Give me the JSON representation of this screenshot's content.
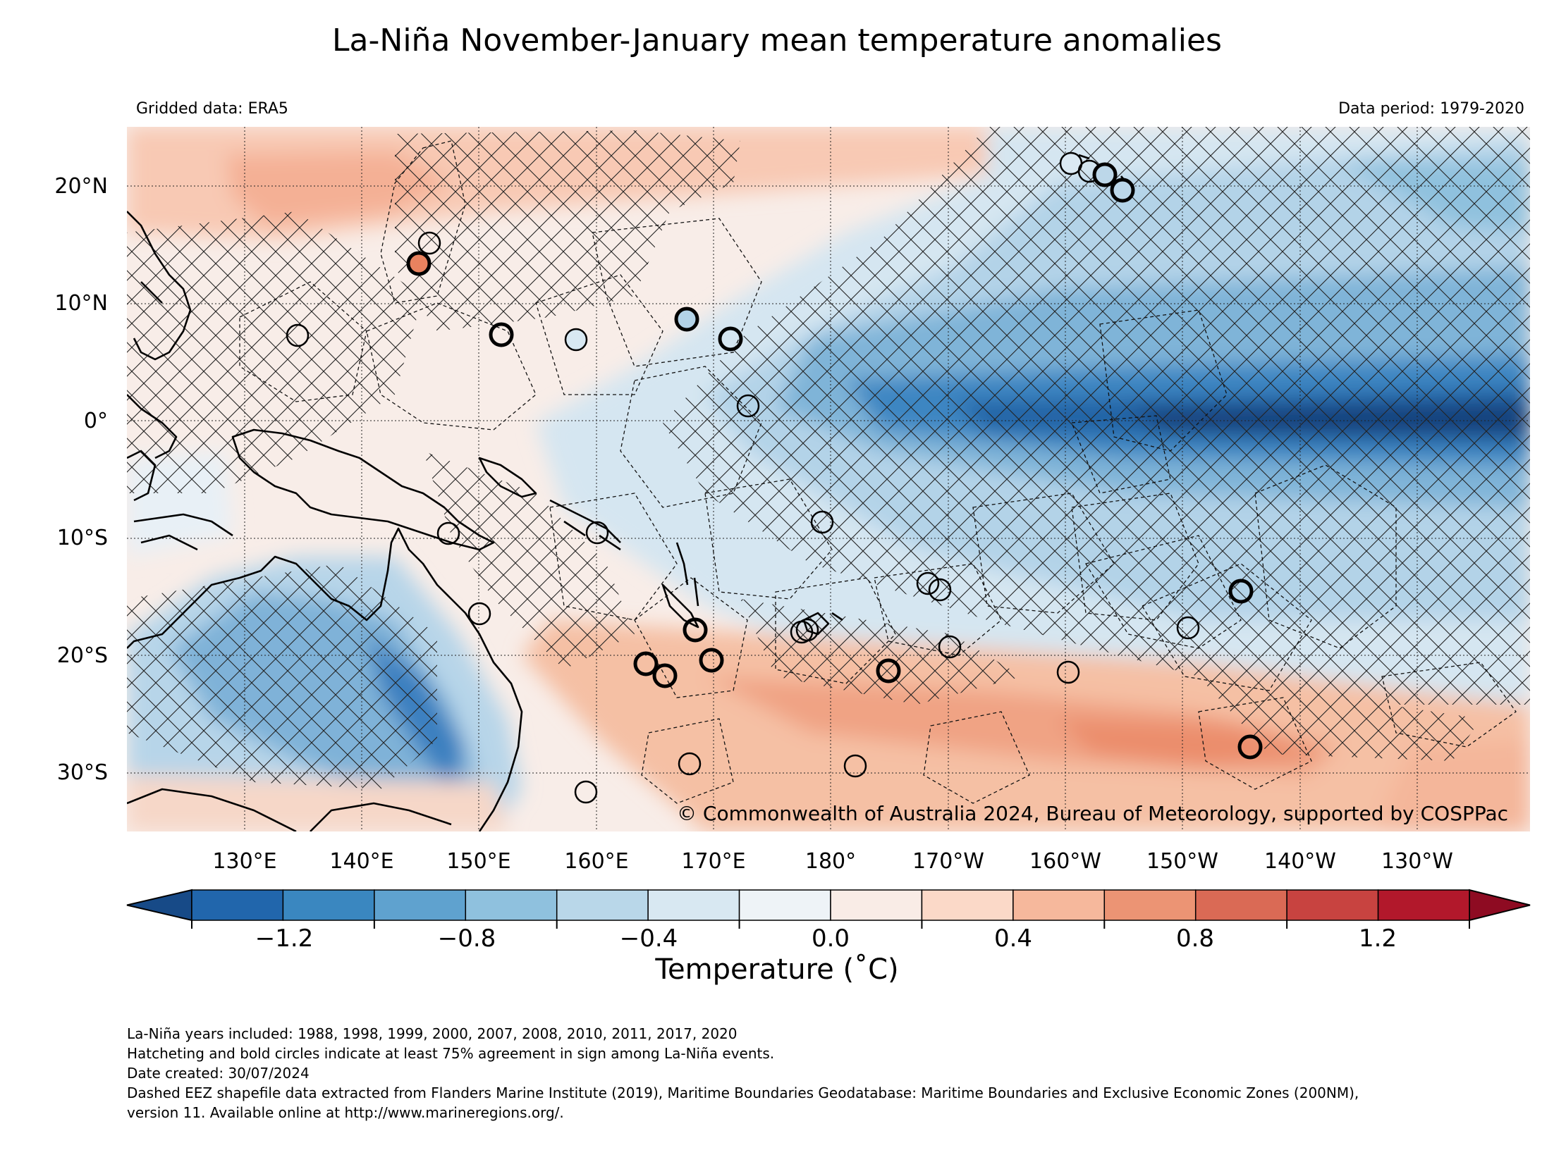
{
  "title": "La-Niña November-January mean temperature anomalies",
  "gridded_label": "Gridded data: ERA5",
  "period_label": "Data period: 1979-2020",
  "copyright": "© Commonwealth of Australia 2024, Bureau of Meteorology, supported by COSPPac",
  "map": {
    "lat_ticks": [
      "20°N",
      "10°N",
      "0°",
      "10°S",
      "20°S",
      "30°S"
    ],
    "lon_ticks": [
      "130°E",
      "140°E",
      "150°E",
      "160°E",
      "170°E",
      "180°",
      "170°W",
      "160°W",
      "150°W",
      "140°W",
      "130°W"
    ]
  },
  "colorbar": {
    "label": "Temperature (˚C)",
    "ticks": [
      "−1.2",
      "−0.8",
      "−0.4",
      "0.0",
      "0.4",
      "0.8",
      "1.2"
    ],
    "colors": [
      "#2166ac",
      "#3a87c0",
      "#5fa2cf",
      "#8fc1de",
      "#b9d7e9",
      "#d8e8f2",
      "#eef3f7",
      "#f9ece6",
      "#fbd9c8",
      "#f6b89c",
      "#ec9474",
      "#da6a55",
      "#c84340",
      "#b2182b"
    ],
    "under_color": "#174a87",
    "over_color": "#8e0b22"
  },
  "footnotes": [
    "La-Niña years included: 1988, 1998, 1999, 2000, 2007, 2008, 2010, 2011, 2017, 2020",
    "Hatcheting and bold circles indicate at least 75% agreement in sign among La-Niña events.",
    "Date created: 30/07/2024",
    "Dashed EEZ shapefile data extracted from Flanders Marine Institute (2019), Maritime Boundaries Geodatabase: Maritime Boundaries and Exclusive Economic Zones (200NM),",
    "version 11. Available online at http://www.marineregions.org/."
  ]
}
